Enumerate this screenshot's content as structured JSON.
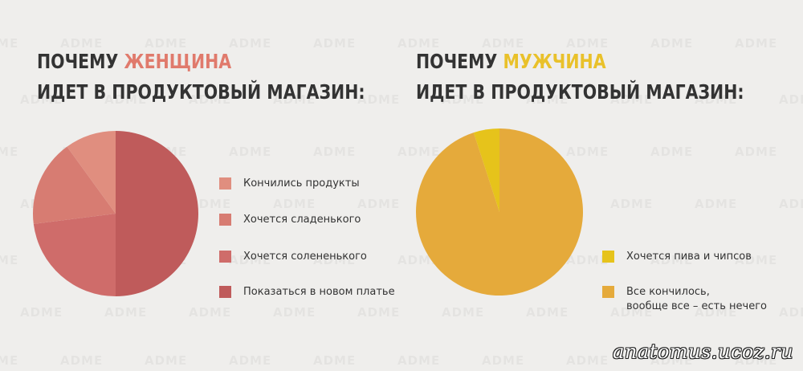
{
  "watermark_text": "ADME",
  "signature": "anatomus.ucoz.ru",
  "colors": {
    "title_dark": "#333333",
    "woman_accent": "#e07a6c",
    "man_accent": "#e9c12a"
  },
  "chart_data": [
    {
      "type": "pie",
      "title_prefix": "ПОЧЕМУ",
      "title_highlight": "ЖЕНЩИНА",
      "title_line2": "ИДЕТ В ПРОДУКТОВЫЙ МАГАЗИН:",
      "start_angle_deg": 0,
      "direction": "clockwise",
      "slices": [
        {
          "label": "Показаться в новом платье",
          "value": 50,
          "color": "#bf5b5b"
        },
        {
          "label": "Хочется солененького",
          "value": 23,
          "color": "#cf6c6a"
        },
        {
          "label": "Хочется сладенького",
          "value": 17,
          "color": "#d77c72"
        },
        {
          "label": "Кончились продукты",
          "value": 10,
          "color": "#e08e7f"
        }
      ],
      "legend": [
        {
          "label": "Кончились продукты",
          "color": "#e08e7f"
        },
        {
          "label": "Хочется сладенького",
          "color": "#d77c72"
        },
        {
          "label": "Хочется солененького",
          "color": "#cf6c6a"
        },
        {
          "label": "Показаться в новом платье",
          "color": "#bf5b5b"
        }
      ]
    },
    {
      "type": "pie",
      "title_prefix": "ПОЧЕМУ",
      "title_highlight": "МУЖЧИНА",
      "title_line2": "ИДЕТ В ПРОДУКТОВЫЙ МАГАЗИН:",
      "start_angle_deg": 0,
      "direction": "clockwise",
      "slices": [
        {
          "label": "Все кончилось, вообще все – есть нечего",
          "value": 95,
          "color": "#e5aa3b"
        },
        {
          "label": "Хочется пива и чипсов",
          "value": 5,
          "color": "#e6c31b"
        }
      ],
      "legend": [
        {
          "label": "Хочется пива и чипсов",
          "color": "#e6c31b"
        },
        {
          "label": "Все кончилось,\nвообще все – есть нечего",
          "color": "#e5aa3b"
        }
      ]
    }
  ]
}
